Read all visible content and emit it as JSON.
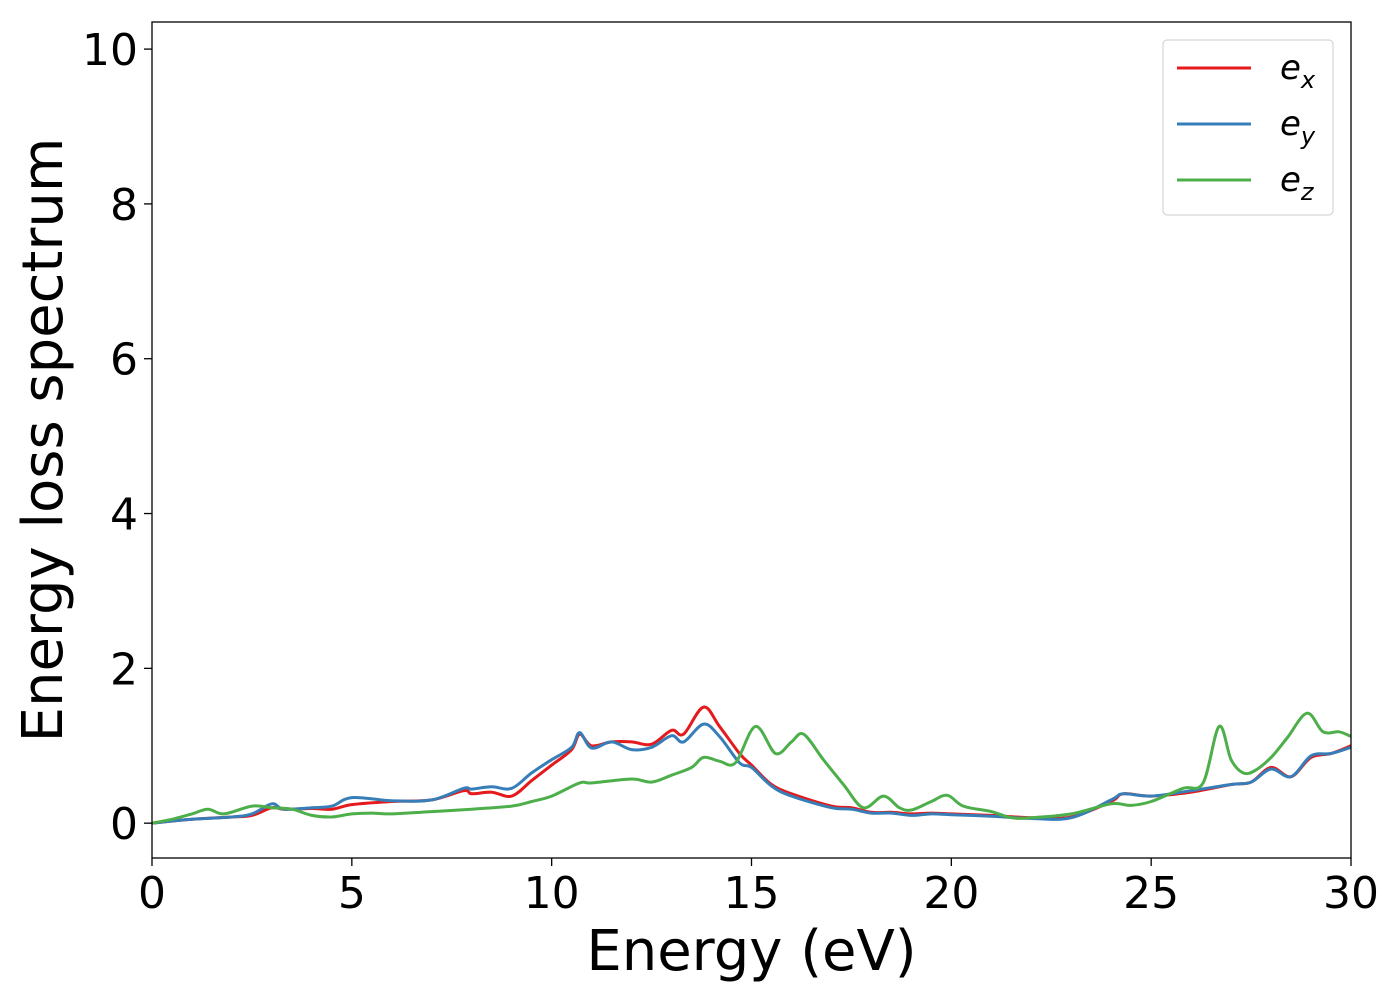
{
  "chart_data": {
    "type": "line",
    "title": "",
    "xlabel": "Energy (eV)",
    "ylabel": "Energy loss spectrum",
    "xlim": [
      0,
      30
    ],
    "ylim": [
      -0.45,
      10.35
    ],
    "xticks": [
      "0",
      "5",
      "10",
      "15",
      "20",
      "25",
      "30"
    ],
    "yticks": [
      "0",
      "2",
      "4",
      "6",
      "8",
      "10"
    ],
    "grid": false,
    "legend_position": "top-right",
    "series": [
      {
        "name": "e_x",
        "legend_base": "e",
        "legend_sub": "x",
        "color": "#e41a1c",
        "x": [
          0,
          1,
          2,
          2.5,
          3,
          3.3,
          4,
          4.5,
          5,
          6,
          7,
          7.8,
          8,
          8.5,
          9,
          9.5,
          10,
          10.5,
          10.7,
          11,
          11.5,
          12,
          12.5,
          13,
          13.3,
          13.8,
          14.2,
          14.7,
          15,
          15.5,
          16,
          17,
          17.5,
          18,
          18.5,
          19,
          19.5,
          20,
          21,
          22,
          23,
          24,
          24.3,
          25,
          26,
          27,
          27.5,
          28,
          28.5,
          29,
          29.5,
          30
        ],
        "y": [
          0,
          0.05,
          0.08,
          0.1,
          0.2,
          0.18,
          0.19,
          0.18,
          0.24,
          0.28,
          0.3,
          0.42,
          0.38,
          0.4,
          0.35,
          0.55,
          0.75,
          0.95,
          1.15,
          1.0,
          1.05,
          1.05,
          1.02,
          1.2,
          1.15,
          1.5,
          1.25,
          0.9,
          0.75,
          0.5,
          0.38,
          0.22,
          0.2,
          0.14,
          0.14,
          0.12,
          0.13,
          0.12,
          0.1,
          0.07,
          0.08,
          0.28,
          0.38,
          0.35,
          0.4,
          0.5,
          0.53,
          0.72,
          0.6,
          0.85,
          0.9,
          1.0
        ]
      },
      {
        "name": "e_y",
        "legend_base": "e",
        "legend_sub": "y",
        "color": "#377eb8",
        "x": [
          0,
          1,
          2,
          2.5,
          3,
          3.3,
          4,
          4.5,
          5,
          6,
          7,
          7.8,
          8,
          8.5,
          9,
          9.5,
          10,
          10.5,
          10.7,
          11,
          11.5,
          12,
          12.5,
          13,
          13.3,
          13.8,
          14.2,
          14.7,
          15,
          15.5,
          16,
          17,
          17.5,
          18,
          18.5,
          19,
          19.5,
          20,
          21,
          22,
          23,
          24,
          24.3,
          25,
          26,
          27,
          27.5,
          28,
          28.5,
          29,
          29.5,
          30
        ],
        "y": [
          0,
          0.05,
          0.08,
          0.12,
          0.25,
          0.18,
          0.2,
          0.22,
          0.33,
          0.29,
          0.3,
          0.45,
          0.44,
          0.47,
          0.45,
          0.65,
          0.82,
          0.98,
          1.17,
          0.97,
          1.05,
          0.95,
          0.98,
          1.13,
          1.05,
          1.28,
          1.12,
          0.78,
          0.72,
          0.48,
          0.35,
          0.2,
          0.18,
          0.13,
          0.13,
          0.1,
          0.12,
          0.11,
          0.09,
          0.06,
          0.07,
          0.3,
          0.38,
          0.35,
          0.42,
          0.5,
          0.53,
          0.7,
          0.6,
          0.87,
          0.9,
          0.98
        ]
      },
      {
        "name": "e_z",
        "legend_base": "e",
        "legend_sub": "z",
        "color": "#4daf4a",
        "x": [
          0,
          0.5,
          1,
          1.4,
          1.8,
          2.5,
          3,
          3.5,
          4,
          4.5,
          5,
          5.5,
          6,
          7,
          8,
          9,
          9.5,
          10,
          10.7,
          11,
          12,
          12.5,
          13,
          13.5,
          13.8,
          14.2,
          14.6,
          15.1,
          15.6,
          16,
          16.3,
          16.8,
          17.3,
          17.8,
          18.3,
          18.7,
          19,
          19.5,
          19.9,
          20.3,
          21,
          21.5,
          22,
          23,
          24,
          24.5,
          25,
          25.8,
          26.3,
          26.7,
          27,
          27.3,
          27.6,
          28,
          28.4,
          28.9,
          29.3,
          29.7,
          30
        ],
        "y": [
          0,
          0.05,
          0.12,
          0.18,
          0.12,
          0.22,
          0.2,
          0.18,
          0.1,
          0.08,
          0.12,
          0.13,
          0.12,
          0.15,
          0.18,
          0.22,
          0.28,
          0.35,
          0.52,
          0.52,
          0.57,
          0.53,
          0.62,
          0.72,
          0.85,
          0.8,
          0.78,
          1.25,
          0.9,
          1.05,
          1.15,
          0.82,
          0.5,
          0.2,
          0.35,
          0.2,
          0.17,
          0.28,
          0.36,
          0.22,
          0.15,
          0.07,
          0.07,
          0.12,
          0.25,
          0.23,
          0.28,
          0.45,
          0.52,
          1.25,
          0.82,
          0.65,
          0.68,
          0.85,
          1.1,
          1.42,
          1.18,
          1.18,
          1.12
        ]
      }
    ]
  }
}
